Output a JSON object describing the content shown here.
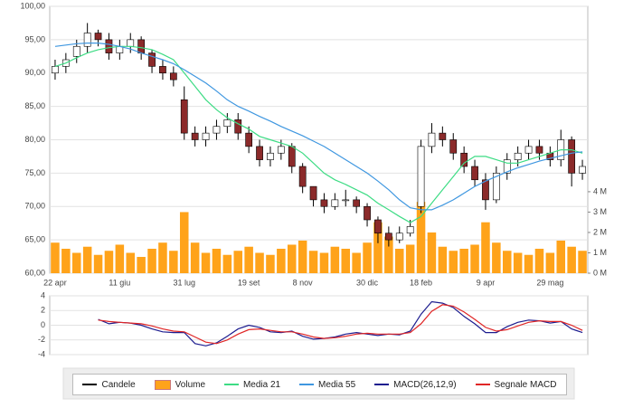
{
  "chart_data": [
    {
      "type": "candlestick",
      "categories": [
        "22 apr",
        null,
        null,
        null,
        null,
        null,
        "11 giu",
        null,
        null,
        null,
        null,
        null,
        "31 lug",
        null,
        null,
        null,
        null,
        null,
        "19 set",
        null,
        null,
        null,
        null,
        "8 nov",
        null,
        null,
        null,
        null,
        null,
        "30 dic",
        null,
        null,
        null,
        null,
        "18 feb",
        null,
        null,
        null,
        null,
        null,
        "9 apr",
        null,
        null,
        null,
        null,
        null,
        "29 mag",
        null,
        null,
        null
      ],
      "ylim": [
        60,
        100
      ],
      "yticks": [
        {
          "value": 100,
          "label": "100,00"
        },
        {
          "value": 95,
          "label": "95,00"
        },
        {
          "value": 90,
          "label": "90,00"
        },
        {
          "value": 85,
          "label": "85,00"
        },
        {
          "value": 80,
          "label": "80,00"
        },
        {
          "value": 75,
          "label": "75,00"
        },
        {
          "value": 70,
          "label": "70,00"
        },
        {
          "value": 65,
          "label": "65,00"
        },
        {
          "value": 60,
          "label": "60,00"
        }
      ],
      "y2lim": [
        0,
        13.1
      ],
      "y2ticks": [
        {
          "value": 0,
          "label": "0 M"
        },
        {
          "value": 1,
          "label": "1 M"
        },
        {
          "value": 2,
          "label": "2 M"
        },
        {
          "value": 3,
          "label": "3 M"
        },
        {
          "value": 4,
          "label": "4 M"
        }
      ],
      "grid": true,
      "series": [
        {
          "name": "Candele",
          "type": "candlestick",
          "color": "#000000",
          "body_color": "#8b2a2a",
          "open": [
            90,
            91,
            92.5,
            94,
            96,
            95,
            93,
            94,
            95,
            93,
            91,
            90,
            86,
            81,
            80,
            81,
            82,
            83,
            81,
            79,
            77,
            78,
            79,
            76,
            73,
            71,
            70,
            71,
            71,
            70,
            68,
            66,
            65,
            66,
            70,
            79,
            81,
            80,
            78,
            76,
            74,
            71,
            75,
            77,
            78,
            79,
            78,
            77,
            80,
            75
          ],
          "high": [
            92,
            93,
            95,
            97.5,
            96.5,
            96,
            95,
            96,
            95.5,
            93.5,
            92,
            91,
            88,
            82,
            82,
            83,
            84,
            84,
            82,
            80,
            79,
            80,
            79.5,
            76.5,
            73,
            72,
            72,
            72.5,
            71.5,
            70.5,
            68.5,
            67,
            67,
            68,
            80,
            82.5,
            82,
            81,
            79,
            77,
            75,
            76,
            78,
            79,
            80,
            80,
            79,
            81.5,
            80.5,
            77
          ],
          "low": [
            89,
            90,
            91.5,
            93,
            94,
            92,
            92,
            93,
            92,
            90,
            89,
            88,
            80,
            79,
            79,
            80,
            81,
            80,
            78,
            76,
            76,
            77,
            75,
            72,
            70,
            69,
            69.5,
            70,
            69,
            67,
            64.5,
            64,
            64.5,
            65.5,
            69,
            78,
            79,
            77,
            75,
            73,
            69.5,
            70.5,
            74,
            76,
            77,
            77,
            76,
            76,
            73,
            74
          ],
          "close": [
            91,
            92,
            94,
            96,
            95,
            93,
            94,
            95,
            93,
            91,
            90,
            89,
            81,
            80,
            81,
            82,
            83,
            81,
            79,
            77,
            78,
            79,
            76,
            73,
            71,
            70,
            71,
            71,
            70,
            68,
            66,
            65,
            66,
            67,
            79,
            81,
            80,
            78,
            76,
            74,
            71,
            75,
            77,
            78,
            79,
            78,
            77,
            80,
            75,
            76
          ]
        },
        {
          "name": "Volume",
          "type": "bar",
          "axis": "y2",
          "color": "#ffa31a",
          "values": [
            1.5,
            1.2,
            1,
            1.3,
            0.9,
            1.1,
            1.4,
            1,
            0.8,
            1.2,
            1.5,
            1.1,
            3,
            1.5,
            1,
            1.2,
            0.9,
            1.1,
            1.3,
            1,
            0.9,
            1.2,
            1.4,
            1.6,
            1.1,
            1,
            1.3,
            1.2,
            1,
            1.5,
            2.5,
            1.8,
            1.2,
            1.4,
            3.5,
            2,
            1.3,
            1.1,
            1.2,
            1.4,
            2.5,
            1.5,
            1.1,
            1,
            0.9,
            1.2,
            1,
            1.6,
            1.3,
            1.1
          ]
        },
        {
          "name": "Media 21",
          "type": "line",
          "color": "#3ddc84",
          "values": [
            91,
            91.5,
            92.3,
            93,
            93.5,
            93.8,
            94,
            94,
            93.8,
            93.5,
            92.8,
            92,
            90,
            88,
            86,
            84.5,
            83.3,
            82.4,
            81.6,
            80.5,
            80,
            79.5,
            79,
            78,
            76.5,
            75,
            74,
            73.3,
            72.5,
            71.7,
            70.5,
            69.5,
            68.5,
            67.6,
            68.5,
            70.5,
            72.5,
            74.5,
            76.5,
            77.5,
            77.5,
            77,
            76.5,
            76.5,
            77,
            77.5,
            78,
            78.5,
            78.5,
            78
          ]
        },
        {
          "name": "Media 55",
          "type": "line",
          "color": "#3f97e0",
          "values": [
            94,
            94.2,
            94.4,
            94.5,
            94.5,
            94.3,
            94,
            93.6,
            93,
            92.5,
            92,
            91.4,
            90.5,
            89.5,
            88.5,
            87.3,
            86,
            85,
            84.3,
            83.5,
            82.8,
            82,
            81.3,
            80.6,
            79.8,
            79,
            78,
            77,
            76,
            75,
            73.8,
            72.5,
            71,
            69.8,
            69.5,
            69.5,
            70.2,
            71,
            72,
            73,
            73.8,
            74.5,
            75.2,
            75.8,
            76.3,
            76.8,
            77.2,
            77.6,
            78,
            78.2
          ]
        }
      ]
    },
    {
      "type": "line",
      "ylim": [
        -4,
        4
      ],
      "yticks": [
        4,
        2,
        0,
        -2,
        -4
      ],
      "series": [
        {
          "name": "MACD(26,12,9)",
          "type": "line",
          "color": "#1c1c8f",
          "values": [
            null,
            null,
            null,
            null,
            0.8,
            0.2,
            0.4,
            0.3,
            0,
            -0.5,
            -0.9,
            -1,
            -1,
            -2.5,
            -2.8,
            -2.4,
            -1.5,
            -0.5,
            0,
            -0.3,
            -0.9,
            -1,
            -0.8,
            -1.5,
            -1.9,
            -1.8,
            -1.6,
            -1.2,
            -1,
            -1.2,
            -1.4,
            -1.2,
            -1.3,
            -0.8,
            1.5,
            3.2,
            3,
            2.4,
            1.2,
            0.2,
            -1,
            -1,
            -0.2,
            0.4,
            0.7,
            0.6,
            0.3,
            0.5,
            -0.5,
            -1
          ]
        },
        {
          "name": "Segnale MACD",
          "type": "line",
          "color": "#e02626",
          "values": [
            null,
            null,
            null,
            null,
            0.7,
            0.5,
            0.4,
            0.3,
            0.2,
            -0.1,
            -0.5,
            -0.8,
            -0.9,
            -1.6,
            -2.3,
            -2.5,
            -2,
            -1.2,
            -0.6,
            -0.5,
            -0.7,
            -0.9,
            -0.9,
            -1.2,
            -1.6,
            -1.8,
            -1.7,
            -1.5,
            -1.2,
            -1.1,
            -1.2,
            -1.2,
            -1.2,
            -1,
            0.2,
            1.9,
            2.8,
            2.6,
            1.8,
            0.8,
            -0.3,
            -0.8,
            -0.6,
            -0.1,
            0.4,
            0.6,
            0.5,
            0.5,
            0,
            -0.7
          ]
        }
      ]
    }
  ]
}
